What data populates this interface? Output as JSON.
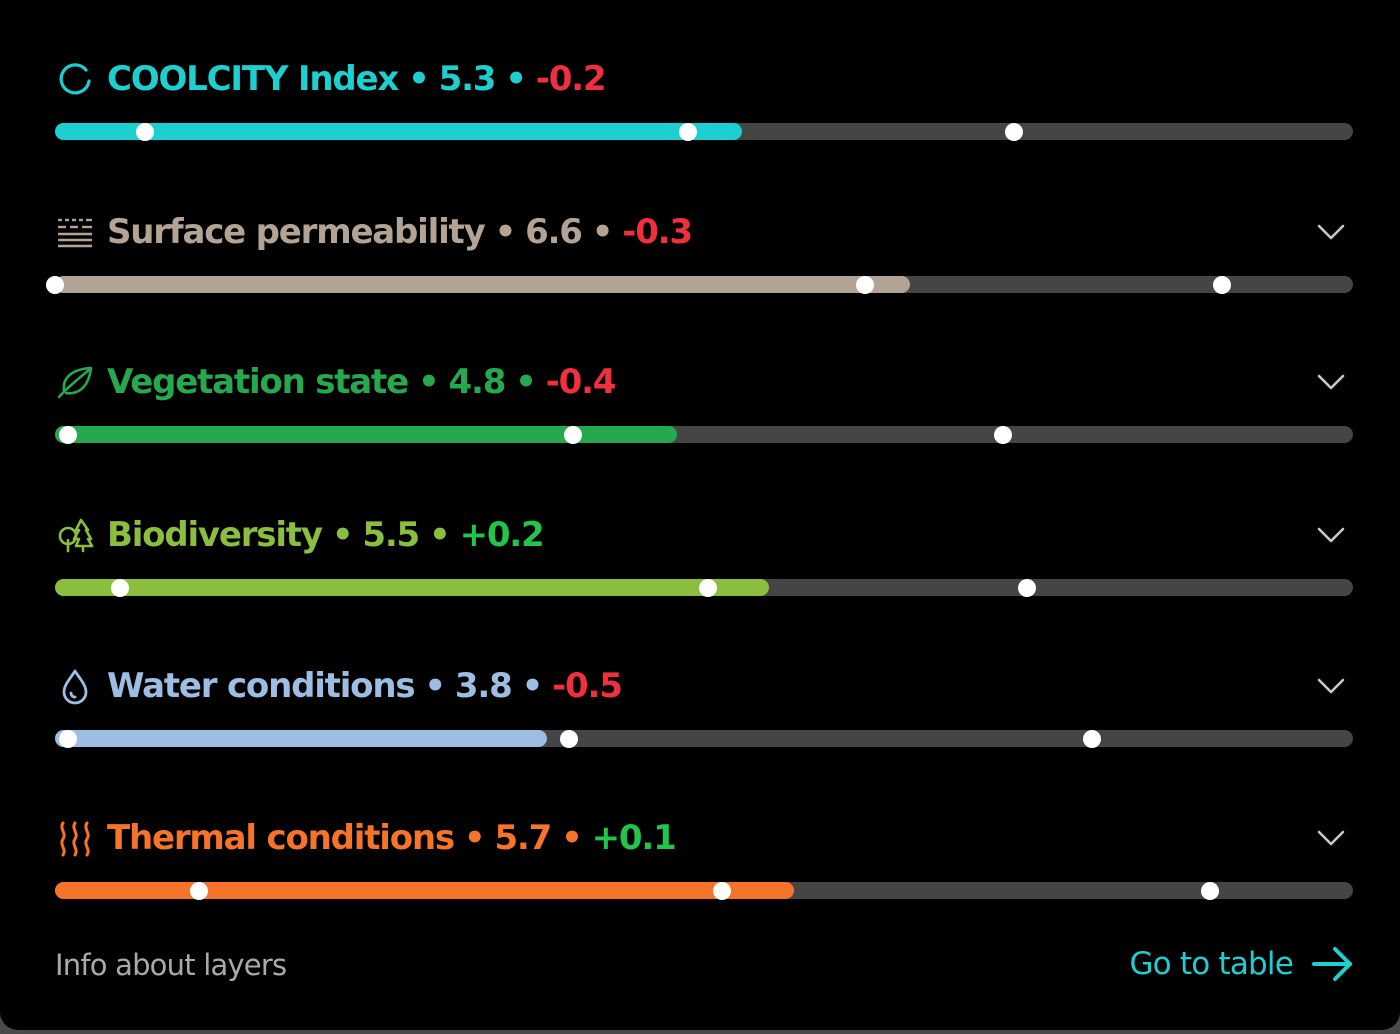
{
  "layers": [
    {
      "id": "coolcity",
      "name": "COOLCITY Index",
      "value": "5.3",
      "change": "-0.2",
      "change_sign": "neg",
      "color": "#1ecfd0",
      "icon": "refresh-icon",
      "expandable": false,
      "fill_fraction": 0.529,
      "markers": [
        0.069,
        0.488,
        0.739
      ]
    },
    {
      "id": "surface-permeability",
      "name": "Surface permeability",
      "value": "6.6",
      "change": "-0.3",
      "change_sign": "neg",
      "color": "#b3a394",
      "icon": "permeable-surface-icon",
      "expandable": true,
      "fill_fraction": 0.659,
      "markers": [
        0.0,
        0.624,
        0.899
      ]
    },
    {
      "id": "vegetation-state",
      "name": "Vegetation state",
      "value": "4.8",
      "change": "-0.4",
      "change_sign": "neg",
      "color": "#26a94e",
      "icon": "leaf-icon",
      "expandable": true,
      "fill_fraction": 0.479,
      "markers": [
        0.01,
        0.399,
        0.73
      ]
    },
    {
      "id": "biodiversity",
      "name": "Biodiversity",
      "value": "5.5",
      "change": "+0.2",
      "change_sign": "pos",
      "color": "#8bbd3f",
      "icon": "trees-icon",
      "expandable": true,
      "fill_fraction": 0.55,
      "markers": [
        0.05,
        0.503,
        0.749
      ]
    },
    {
      "id": "water-conditions",
      "name": "Water conditions",
      "value": "3.8",
      "change": "-0.5",
      "change_sign": "neg",
      "color": "#9dbde3",
      "icon": "water-drop-icon",
      "expandable": true,
      "fill_fraction": 0.379,
      "markers": [
        0.01,
        0.396,
        0.799
      ]
    },
    {
      "id": "thermal-conditions",
      "name": "Thermal conditions",
      "value": "5.7",
      "change": "+0.1",
      "change_sign": "pos",
      "color": "#f6742a",
      "icon": "heat-waves-icon",
      "expandable": true,
      "fill_fraction": 0.569,
      "markers": [
        0.111,
        0.514,
        0.89
      ]
    }
  ],
  "separator": "•",
  "footer": {
    "info_label": "Info about layers",
    "goto_label": "Go to table",
    "goto_icon": "arrow-right-icon"
  }
}
